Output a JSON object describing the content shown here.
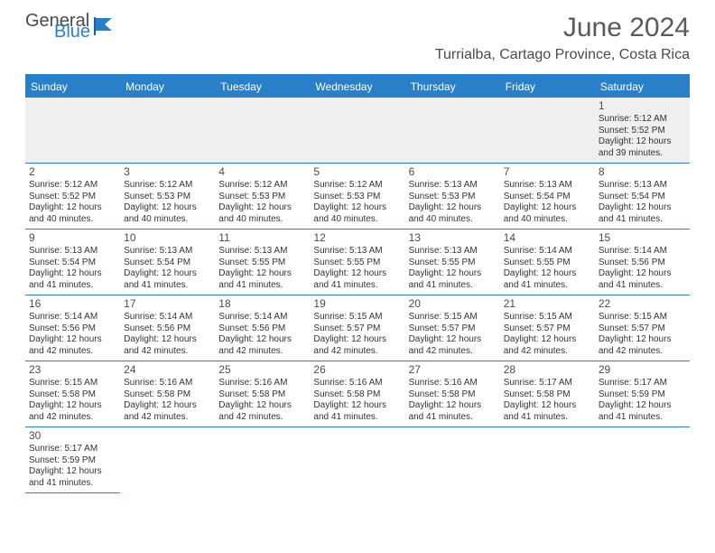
{
  "logo": {
    "word1": "General",
    "word2": "Blue",
    "color1": "#4a4a4a",
    "color2": "#2a7fc9"
  },
  "title": "June 2024",
  "location": "Turrialba, Cartago Province, Costa Rica",
  "colors": {
    "header_bg": "#2a7fc9",
    "border": "#2a7fc9",
    "bg": "#ffffff",
    "alt_row": "#efefef",
    "text": "#333333"
  },
  "weekdays": [
    "Sunday",
    "Monday",
    "Tuesday",
    "Wednesday",
    "Thursday",
    "Friday",
    "Saturday"
  ],
  "weeks": [
    [
      null,
      null,
      null,
      null,
      null,
      null,
      {
        "n": "1",
        "sr": "Sunrise: 5:12 AM",
        "ss": "Sunset: 5:52 PM",
        "d1": "Daylight: 12 hours",
        "d2": "and 39 minutes."
      }
    ],
    [
      {
        "n": "2",
        "sr": "Sunrise: 5:12 AM",
        "ss": "Sunset: 5:52 PM",
        "d1": "Daylight: 12 hours",
        "d2": "and 40 minutes."
      },
      {
        "n": "3",
        "sr": "Sunrise: 5:12 AM",
        "ss": "Sunset: 5:53 PM",
        "d1": "Daylight: 12 hours",
        "d2": "and 40 minutes."
      },
      {
        "n": "4",
        "sr": "Sunrise: 5:12 AM",
        "ss": "Sunset: 5:53 PM",
        "d1": "Daylight: 12 hours",
        "d2": "and 40 minutes."
      },
      {
        "n": "5",
        "sr": "Sunrise: 5:12 AM",
        "ss": "Sunset: 5:53 PM",
        "d1": "Daylight: 12 hours",
        "d2": "and 40 minutes."
      },
      {
        "n": "6",
        "sr": "Sunrise: 5:13 AM",
        "ss": "Sunset: 5:53 PM",
        "d1": "Daylight: 12 hours",
        "d2": "and 40 minutes."
      },
      {
        "n": "7",
        "sr": "Sunrise: 5:13 AM",
        "ss": "Sunset: 5:54 PM",
        "d1": "Daylight: 12 hours",
        "d2": "and 40 minutes."
      },
      {
        "n": "8",
        "sr": "Sunrise: 5:13 AM",
        "ss": "Sunset: 5:54 PM",
        "d1": "Daylight: 12 hours",
        "d2": "and 41 minutes."
      }
    ],
    [
      {
        "n": "9",
        "sr": "Sunrise: 5:13 AM",
        "ss": "Sunset: 5:54 PM",
        "d1": "Daylight: 12 hours",
        "d2": "and 41 minutes."
      },
      {
        "n": "10",
        "sr": "Sunrise: 5:13 AM",
        "ss": "Sunset: 5:54 PM",
        "d1": "Daylight: 12 hours",
        "d2": "and 41 minutes."
      },
      {
        "n": "11",
        "sr": "Sunrise: 5:13 AM",
        "ss": "Sunset: 5:55 PM",
        "d1": "Daylight: 12 hours",
        "d2": "and 41 minutes."
      },
      {
        "n": "12",
        "sr": "Sunrise: 5:13 AM",
        "ss": "Sunset: 5:55 PM",
        "d1": "Daylight: 12 hours",
        "d2": "and 41 minutes."
      },
      {
        "n": "13",
        "sr": "Sunrise: 5:13 AM",
        "ss": "Sunset: 5:55 PM",
        "d1": "Daylight: 12 hours",
        "d2": "and 41 minutes."
      },
      {
        "n": "14",
        "sr": "Sunrise: 5:14 AM",
        "ss": "Sunset: 5:55 PM",
        "d1": "Daylight: 12 hours",
        "d2": "and 41 minutes."
      },
      {
        "n": "15",
        "sr": "Sunrise: 5:14 AM",
        "ss": "Sunset: 5:56 PM",
        "d1": "Daylight: 12 hours",
        "d2": "and 41 minutes."
      }
    ],
    [
      {
        "n": "16",
        "sr": "Sunrise: 5:14 AM",
        "ss": "Sunset: 5:56 PM",
        "d1": "Daylight: 12 hours",
        "d2": "and 42 minutes."
      },
      {
        "n": "17",
        "sr": "Sunrise: 5:14 AM",
        "ss": "Sunset: 5:56 PM",
        "d1": "Daylight: 12 hours",
        "d2": "and 42 minutes."
      },
      {
        "n": "18",
        "sr": "Sunrise: 5:14 AM",
        "ss": "Sunset: 5:56 PM",
        "d1": "Daylight: 12 hours",
        "d2": "and 42 minutes."
      },
      {
        "n": "19",
        "sr": "Sunrise: 5:15 AM",
        "ss": "Sunset: 5:57 PM",
        "d1": "Daylight: 12 hours",
        "d2": "and 42 minutes."
      },
      {
        "n": "20",
        "sr": "Sunrise: 5:15 AM",
        "ss": "Sunset: 5:57 PM",
        "d1": "Daylight: 12 hours",
        "d2": "and 42 minutes."
      },
      {
        "n": "21",
        "sr": "Sunrise: 5:15 AM",
        "ss": "Sunset: 5:57 PM",
        "d1": "Daylight: 12 hours",
        "d2": "and 42 minutes."
      },
      {
        "n": "22",
        "sr": "Sunrise: 5:15 AM",
        "ss": "Sunset: 5:57 PM",
        "d1": "Daylight: 12 hours",
        "d2": "and 42 minutes."
      }
    ],
    [
      {
        "n": "23",
        "sr": "Sunrise: 5:15 AM",
        "ss": "Sunset: 5:58 PM",
        "d1": "Daylight: 12 hours",
        "d2": "and 42 minutes."
      },
      {
        "n": "24",
        "sr": "Sunrise: 5:16 AM",
        "ss": "Sunset: 5:58 PM",
        "d1": "Daylight: 12 hours",
        "d2": "and 42 minutes."
      },
      {
        "n": "25",
        "sr": "Sunrise: 5:16 AM",
        "ss": "Sunset: 5:58 PM",
        "d1": "Daylight: 12 hours",
        "d2": "and 42 minutes."
      },
      {
        "n": "26",
        "sr": "Sunrise: 5:16 AM",
        "ss": "Sunset: 5:58 PM",
        "d1": "Daylight: 12 hours",
        "d2": "and 41 minutes."
      },
      {
        "n": "27",
        "sr": "Sunrise: 5:16 AM",
        "ss": "Sunset: 5:58 PM",
        "d1": "Daylight: 12 hours",
        "d2": "and 41 minutes."
      },
      {
        "n": "28",
        "sr": "Sunrise: 5:17 AM",
        "ss": "Sunset: 5:58 PM",
        "d1": "Daylight: 12 hours",
        "d2": "and 41 minutes."
      },
      {
        "n": "29",
        "sr": "Sunrise: 5:17 AM",
        "ss": "Sunset: 5:59 PM",
        "d1": "Daylight: 12 hours",
        "d2": "and 41 minutes."
      }
    ],
    [
      {
        "n": "30",
        "sr": "Sunrise: 5:17 AM",
        "ss": "Sunset: 5:59 PM",
        "d1": "Daylight: 12 hours",
        "d2": "and 41 minutes."
      },
      null,
      null,
      null,
      null,
      null,
      null
    ]
  ]
}
